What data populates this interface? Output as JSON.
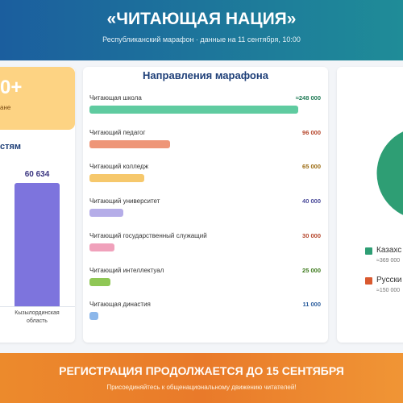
{
  "header": {
    "title": "«ЧИТАЮЩАЯ НАЦИЯ»",
    "subtitle": "Республиканский марафон · данные на 11 сентября, 10:00"
  },
  "left_panel": {
    "card": {
      "value_text": "0+",
      "caption": "ане"
    },
    "chart_data": {
      "type": "bar",
      "title": "стям",
      "categories": [
        "Кызылординская область"
      ],
      "values": [
        60634
      ],
      "value_labels": [
        "60 634"
      ],
      "color": "#7d74dd"
    }
  },
  "middle_panel": {
    "chart_data": {
      "type": "hbar",
      "title": "Направления марафона",
      "categories": [
        "Читающая школа",
        "Читающий педагог",
        "Читающий колледж",
        "Читающий университет",
        "Читающий государственный служащий",
        "Читающий интеллектуал",
        "Читающая династия"
      ],
      "values": [
        248000,
        96000,
        65000,
        40000,
        30000,
        25000,
        11000
      ],
      "value_labels": [
        "≈248 000",
        "96 000",
        "65 000",
        "40 000",
        "30 000",
        "25 000",
        "11 000"
      ],
      "colors": [
        "#5fcba0",
        "#ee9678",
        "#f6c86c",
        "#b5ade8",
        "#f0a1bb",
        "#8fc755",
        "#8cb7ea"
      ],
      "label_colors": [
        "#1f7a55",
        "#b5452a",
        "#9a6a10",
        "#4a4a9a",
        "#b5452a",
        "#3d7a1c",
        "#2d5f9e"
      ]
    }
  },
  "right_panel": {
    "chart_data": {
      "type": "pie",
      "categories": [
        "Казахс",
        "Русски"
      ],
      "values": [
        369000,
        150000
      ],
      "value_labels": [
        "≈369 000",
        "≈150 000"
      ],
      "colors": [
        "#2e9e74",
        "#d9592f"
      ]
    }
  },
  "footer": {
    "title": "РЕГИСТРАЦИЯ ПРОДОЛЖАЕТСЯ ДО 15 СЕНТЯБРЯ",
    "subtitle": "Присоединяйтесь к общенациональному движению читателей!"
  }
}
